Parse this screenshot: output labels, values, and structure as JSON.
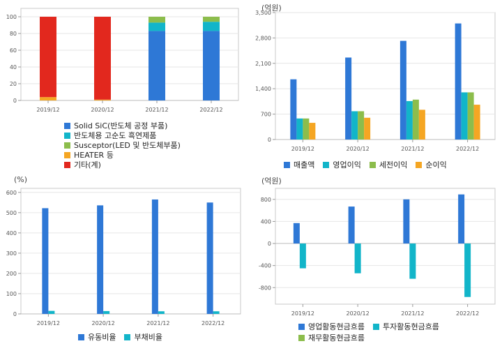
{
  "charts": {
    "c1": {
      "unit": "",
      "chart_data": {
        "type": "bar",
        "stacked": true,
        "categories": [
          "2019/12",
          "2020/12",
          "2021/12",
          "2022/12"
        ],
        "ylim": [
          0,
          110
        ],
        "yticks": [
          0,
          20,
          40,
          60,
          80,
          100
        ],
        "ytick_labels": [
          "0",
          "20",
          "40",
          "60",
          "80",
          "100"
        ],
        "series": [
          {
            "name": "Solid SiC(반도체 공정 부품)",
            "color": "#2e78d6",
            "values": [
              0,
              0,
              83,
              83
            ]
          },
          {
            "name": "반도체용 고순도 흑연제품",
            "color": "#12b5c9",
            "values": [
              0,
              0,
              10,
              11
            ]
          },
          {
            "name": "Susceptor(LED 및 반도체부품)",
            "color": "#8cbd4c",
            "values": [
              0,
              0,
              7,
              6
            ]
          },
          {
            "name": "HEATER 등",
            "color": "#f5a623",
            "values": [
              4,
              1,
              0,
              0
            ]
          },
          {
            "name": "기타(계)",
            "color": "#e2281e",
            "values": [
              96,
              99,
              0,
              0
            ]
          }
        ]
      }
    },
    "c2": {
      "unit": "(억원)",
      "chart_data": {
        "type": "bar",
        "categories": [
          "2019/12",
          "2020/12",
          "2021/12",
          "2022/12"
        ],
        "ylim": [
          0,
          3500
        ],
        "yticks": [
          0,
          700,
          1400,
          2100,
          2800,
          3500
        ],
        "ytick_labels": [
          "0",
          "700",
          "1,400",
          "2,100",
          "2,800",
          "3,500"
        ],
        "series": [
          {
            "name": "매출액",
            "color": "#2e78d6",
            "values": [
              1660,
              2260,
              2720,
              3200
            ]
          },
          {
            "name": "영업이익",
            "color": "#12b5c9",
            "values": [
              580,
              780,
              1060,
              1300
            ]
          },
          {
            "name": "세전이익",
            "color": "#8cbd4c",
            "values": [
              580,
              780,
              1100,
              1300
            ]
          },
          {
            "name": "순이익",
            "color": "#f5a623",
            "values": [
              460,
              600,
              820,
              960
            ]
          }
        ]
      }
    },
    "c3": {
      "unit": "(%)",
      "chart_data": {
        "type": "bar",
        "categories": [
          "2019/12",
          "2020/12",
          "2021/12",
          "2022/12"
        ],
        "ylim": [
          0,
          620
        ],
        "yticks": [
          0,
          100,
          200,
          300,
          400,
          500,
          600
        ],
        "ytick_labels": [
          "0",
          "100",
          "200",
          "300",
          "400",
          "500",
          "600"
        ],
        "series": [
          {
            "name": "유동비율",
            "color": "#2e78d6",
            "values": [
              522,
              536,
              565,
              550
            ]
          },
          {
            "name": "부채비율",
            "color": "#12b5c9",
            "values": [
              15,
              14,
              13,
              13
            ]
          }
        ]
      }
    },
    "c4": {
      "unit": "(억원)",
      "chart_data": {
        "type": "bar",
        "categories": [
          "2019/12",
          "2020/12",
          "2021/12",
          "2022/12"
        ],
        "ylim": [
          -1100,
          1000
        ],
        "yticks": [
          -800,
          -400,
          0,
          400,
          800
        ],
        "ytick_labels": [
          "-800",
          "-400",
          "0",
          "400",
          "800"
        ],
        "series": [
          {
            "name": "영업활동현금흐름",
            "color": "#2e78d6",
            "values": [
              370,
              670,
              800,
              890
            ]
          },
          {
            "name": "투자활동현금흐름",
            "color": "#12b5c9",
            "values": [
              -450,
              -540,
              -640,
              -970
            ]
          },
          {
            "name": "재무활동현금흐름",
            "color": "#8cbd4c",
            "values": [
              0,
              0,
              0,
              0
            ]
          }
        ]
      }
    }
  }
}
